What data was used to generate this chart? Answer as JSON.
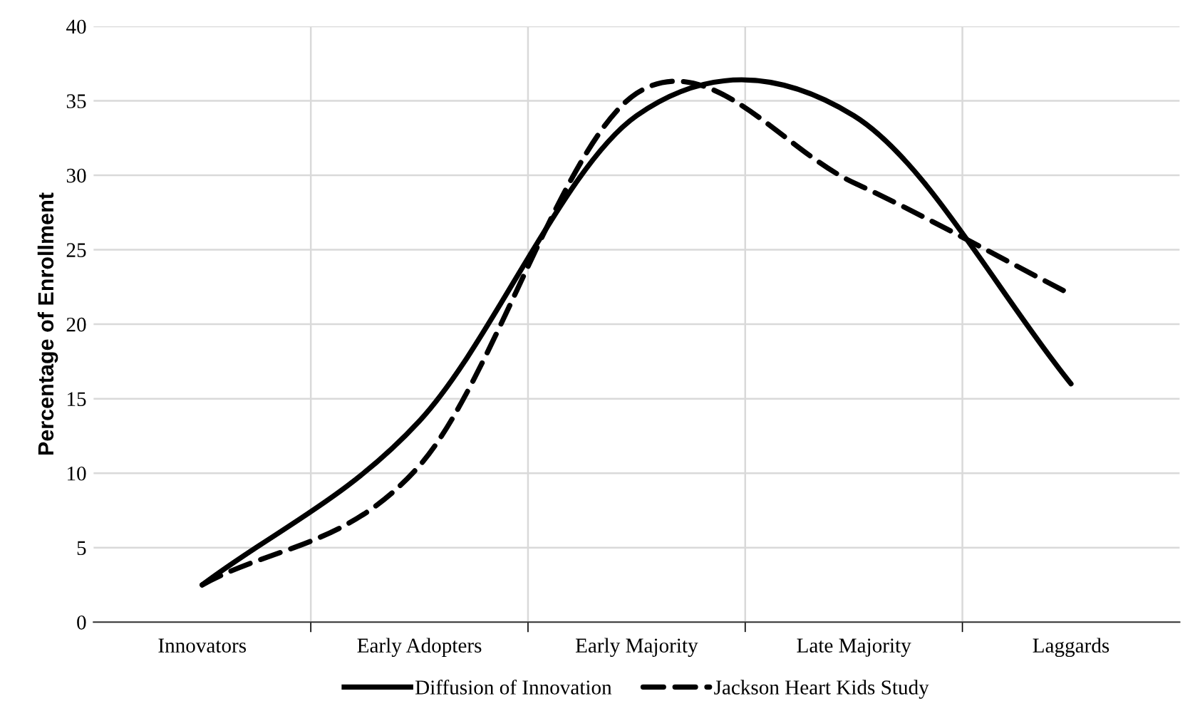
{
  "chart_data": {
    "type": "line",
    "ylabel": "Percentage of Enrollment",
    "categories": [
      "Innovators",
      "Early Adopters",
      "Early Majority",
      "Late Majority",
      "Laggards"
    ],
    "series": [
      {
        "name": "Diffusion of Innovation",
        "color": "#000000",
        "line_style": "solid",
        "values": [
          2.5,
          13.5,
          34,
          34,
          16
        ]
      },
      {
        "name": "Jackson Heart Kids Study",
        "color": "#000000",
        "line_style": "dashed",
        "values": [
          2.5,
          10.5,
          35.5,
          29.5,
          22
        ]
      }
    ],
    "ylim": [
      0,
      40
    ],
    "yticks": [
      0,
      5,
      10,
      15,
      20,
      25,
      30,
      35,
      40
    ],
    "grid": true,
    "legend": "bottom",
    "marker": "none"
  }
}
